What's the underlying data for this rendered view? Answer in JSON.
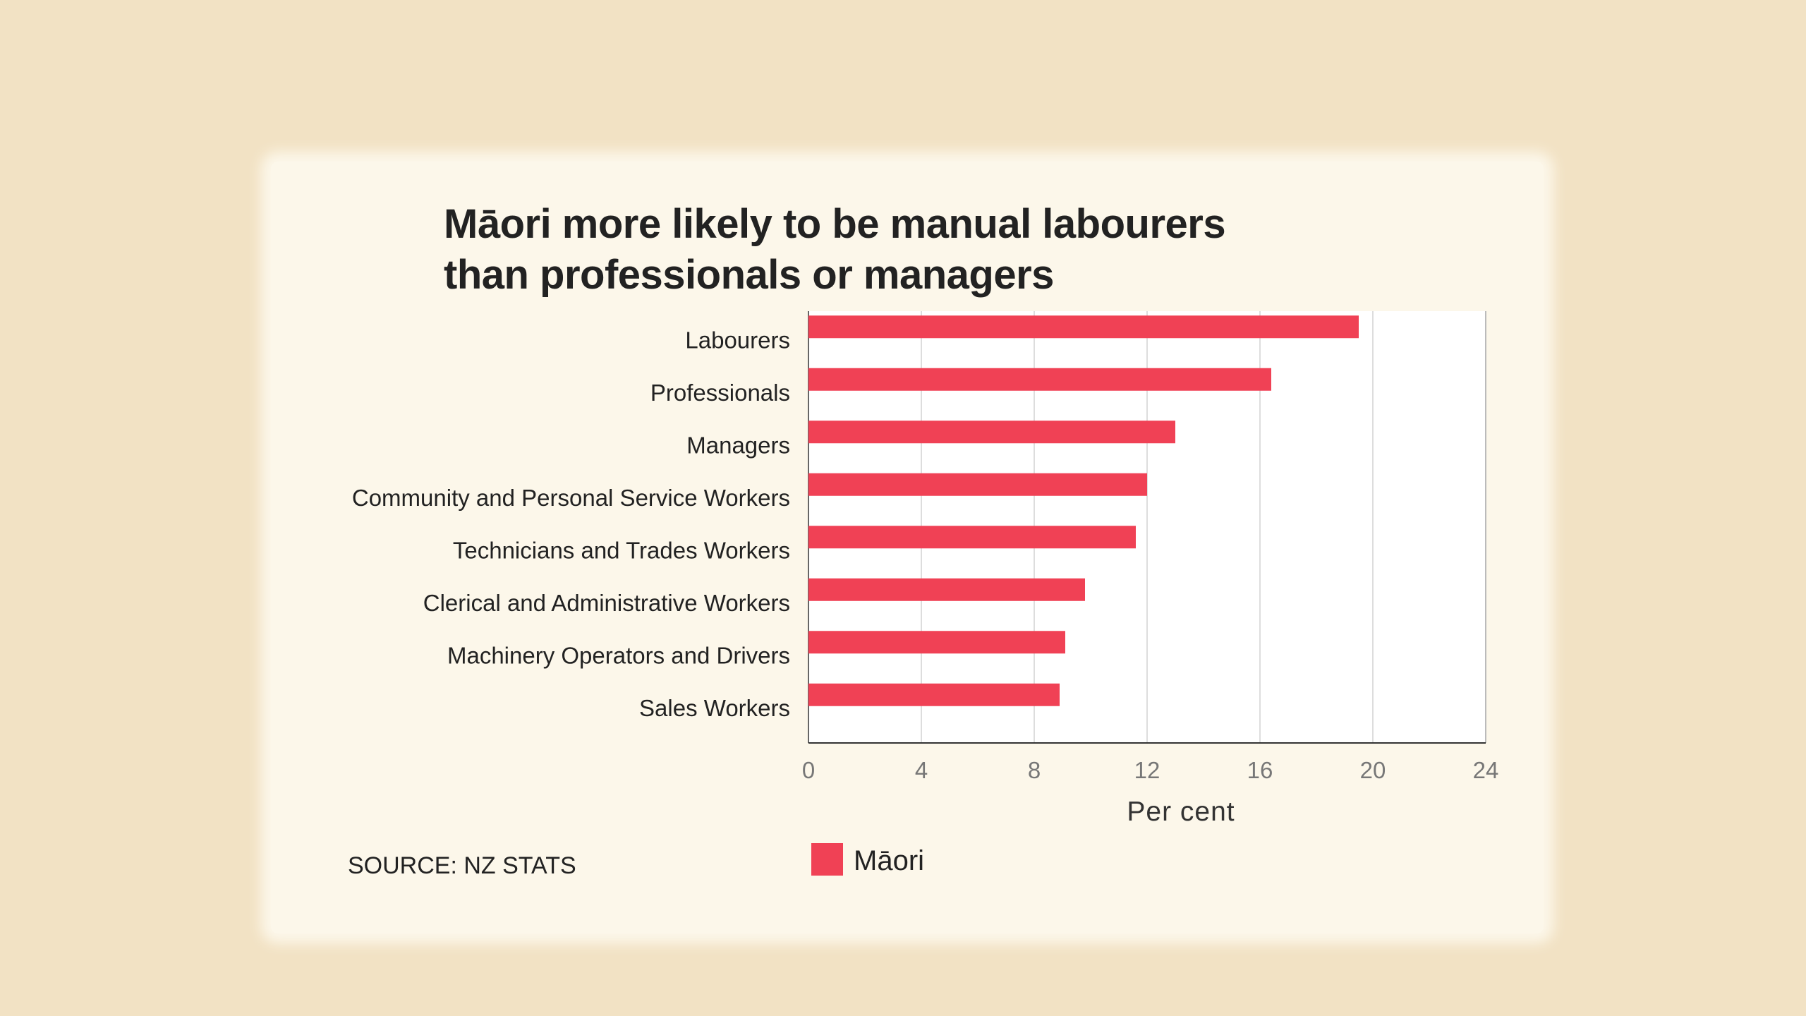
{
  "title_lines": [
    "Māori more likely to be manual labourers",
    "than professionals or managers"
  ],
  "source": "SOURCE: NZ STATS",
  "colors": {
    "bar": "#f04155",
    "background": "#f2e2c4",
    "paper": "#fcf7ea"
  },
  "chart_data": {
    "type": "bar",
    "orientation": "horizontal",
    "categories": [
      "Labourers",
      "Professionals",
      "Managers",
      "Community and Personal Service Workers",
      "Technicians and Trades Workers",
      "Clerical and Administrative Workers",
      "Machinery Operators and Drivers",
      "Sales Workers"
    ],
    "series": [
      {
        "name": "Māori",
        "values": [
          19.5,
          16.4,
          13.0,
          12.0,
          11.6,
          9.8,
          9.1,
          8.9
        ]
      }
    ],
    "xlabel": "Per cent",
    "xlim": [
      0,
      24
    ],
    "xticks": [
      "0",
      "4",
      "8",
      "12",
      "16",
      "20",
      "24"
    ],
    "grid": true,
    "legend": "bottom"
  }
}
